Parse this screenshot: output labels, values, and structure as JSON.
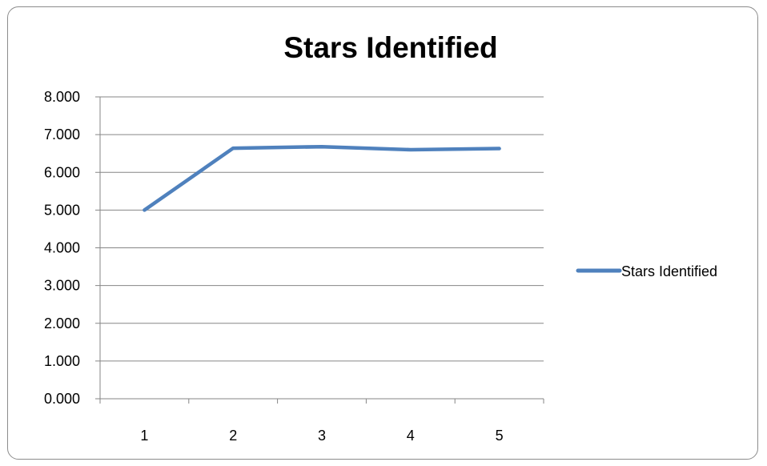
{
  "chart_data": {
    "type": "line",
    "title": "Stars Identified",
    "xlabel": "",
    "ylabel": "",
    "categories": [
      "1",
      "2",
      "3",
      "4",
      "5"
    ],
    "series": [
      {
        "name": "Stars Identified",
        "values": [
          5.0,
          6.64,
          6.68,
          6.6,
          6.63
        ],
        "color": "#4f81bd"
      }
    ],
    "ylim": [
      0,
      8
    ],
    "yticks": [
      "0.000",
      "1.000",
      "2.000",
      "3.000",
      "4.000",
      "5.000",
      "6.000",
      "7.000",
      "8.000"
    ],
    "grid": true,
    "legend": "right"
  }
}
